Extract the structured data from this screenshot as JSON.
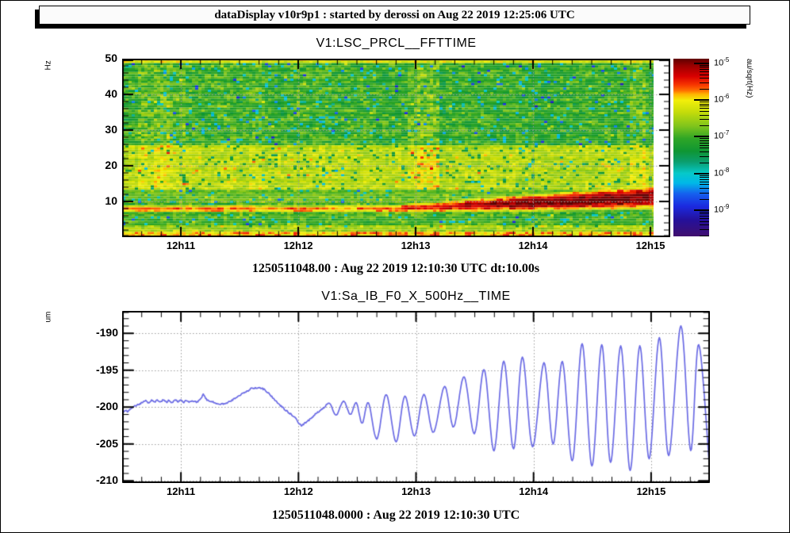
{
  "window": {
    "title_bar": "dataDisplay v10r9p1 : started by derossi on Aug 22 2019 12:25:06 UTC"
  },
  "colors": {
    "curve_line": "#6b6be4",
    "grid": "#9a9a9a",
    "frame": "#000000",
    "palette": [
      [
        0.0,
        "#5f0000"
      ],
      [
        0.04,
        "#9b0000"
      ],
      [
        0.1,
        "#d90000"
      ],
      [
        0.145,
        "#f63300"
      ],
      [
        0.18,
        "#ff7000"
      ],
      [
        0.2,
        "#ffb400"
      ],
      [
        0.235,
        "#f2ef0a"
      ],
      [
        0.3,
        "#c5dc0a"
      ],
      [
        0.38,
        "#7fc41c"
      ],
      [
        0.45,
        "#2ea626"
      ],
      [
        0.52,
        "#0f9633"
      ],
      [
        0.58,
        "#0b9e6e"
      ],
      [
        0.645,
        "#06c9c9"
      ],
      [
        0.7,
        "#00b8e8"
      ],
      [
        0.76,
        "#1560ee"
      ],
      [
        0.83,
        "#1b2ae0"
      ],
      [
        0.91,
        "#251099"
      ],
      [
        1.0,
        "#410f6e"
      ]
    ]
  },
  "time_axis": {
    "tick_labels": [
      "12h11",
      "12h12",
      "12h13",
      "12h14",
      "12h15"
    ],
    "tick_seconds": [
      30,
      90,
      150,
      210,
      270
    ],
    "minor_step_s": 10,
    "start_utc": "12:10:30",
    "duration_s": 300
  },
  "chart_data": [
    {
      "type": "heatmap",
      "title": "V1:LSC_PRCL__FFTTIME",
      "ylabel": "Hz",
      "zlabel": "au/sqrt(Hz)",
      "subtitle": "1250511048.00 : Aug 22 2019 12:10:30 UTC dt:10.00s",
      "ylim": [
        0,
        50
      ],
      "y_major_ticks": [
        10,
        20,
        30,
        40,
        50
      ],
      "y_minor_step": 2,
      "grid": true,
      "data_end_s": 271.5,
      "frame_end_s": 280,
      "colorbar": {
        "log10_top": -4.87,
        "log10_bottom": -9.72,
        "decade_exponents": [
          -5,
          -6,
          -7,
          -8,
          -9
        ]
      },
      "bands": [
        {
          "name": "top-edge-yellow-line",
          "f": [
            48.8,
            50
          ],
          "log10_level": -6.2,
          "noise": 0.4
        },
        {
          "name": "upper-green-background",
          "f": [
            26,
            48.8
          ],
          "log10_level": -7.05,
          "noise": 0.5
        },
        {
          "name": "yellow-mottled-band",
          "f": [
            13,
            26
          ],
          "log10_level": -6.4,
          "noise": 0.35
        },
        {
          "name": "mid-green",
          "f": [
            9.5,
            13
          ],
          "log10_level": -6.8,
          "noise": 0.3
        },
        {
          "name": "gap-green",
          "f": [
            3.2,
            6.5
          ],
          "log10_level": -6.95,
          "noise": 0.4
        },
        {
          "name": "low-yellow",
          "f": [
            1.6,
            3.2
          ],
          "log10_level": -6.5,
          "noise": 0.45
        },
        {
          "name": "bottom-orange-line",
          "f": [
            0.45,
            1.6
          ],
          "log10_level": -5.9,
          "noise": 0.5
        },
        {
          "name": "bottom-edge",
          "f": [
            0,
            0.45
          ],
          "log10_level": -6.9,
          "noise": 0.3
        }
      ],
      "red_band": {
        "f_center_start_hz": 7.9,
        "f_center_end_hz": 11.1,
        "rise_after_s": 140,
        "halfwidth_start_hz": 1.15,
        "halfwidth_end_hz": 3.1,
        "widen_after_s": 130,
        "log10_peak_start": -5.78,
        "log10_peak_end": -4.96,
        "intensify_between_s": [
          120,
          210
        ],
        "min_f_hz": 5.6
      },
      "vertical_streaks": {
        "region_f": [
          13,
          48
        ],
        "strength_before": 0.45,
        "strength_after": 0.85,
        "boundary_s": 150
      }
    },
    {
      "type": "line",
      "title": "V1:Sa_IB_F0_X_500Hz__TIME",
      "ylabel": "um",
      "footer": "1250511048.0000 : Aug 22 2019 12:10:30 UTC",
      "ylim": [
        -210.3,
        -186.95
      ],
      "y_major_ticks": [
        -190,
        -195,
        -200,
        -205,
        -210
      ],
      "y_minor_step": 1,
      "grid": true,
      "points": [
        [
          0,
          -200.9
        ],
        [
          1.5,
          -200.45
        ],
        [
          3,
          -200.6
        ],
        [
          4.5,
          -200.15
        ],
        [
          6,
          -199.95
        ],
        [
          7.5,
          -199.75
        ],
        [
          9,
          -199.55
        ],
        [
          10.5,
          -199.35
        ],
        [
          12,
          -199.1
        ],
        [
          13.5,
          -199.45
        ],
        [
          15,
          -199.05
        ],
        [
          16.5,
          -199.35
        ],
        [
          18,
          -199.1
        ],
        [
          19.5,
          -199.3
        ],
        [
          21,
          -199.0
        ],
        [
          22.5,
          -199.3
        ],
        [
          24,
          -199.1
        ],
        [
          25.5,
          -199.35
        ],
        [
          27,
          -199.05
        ],
        [
          28.5,
          -199.25
        ],
        [
          30,
          -199.1
        ],
        [
          31.5,
          -199.3
        ],
        [
          33,
          -199.1
        ],
        [
          34.5,
          -199.35
        ],
        [
          36,
          -199.15
        ],
        [
          37.5,
          -199.3
        ],
        [
          39,
          -199.2
        ],
        [
          40.2,
          -198.9
        ],
        [
          41.4,
          -198.3
        ],
        [
          42.6,
          -198.8
        ],
        [
          44,
          -199.15
        ],
        [
          46,
          -199.3
        ],
        [
          48,
          -199.45
        ],
        [
          50,
          -199.55
        ],
        [
          52,
          -199.5
        ],
        [
          54,
          -199.35
        ],
        [
          56,
          -199.1
        ],
        [
          58,
          -198.75
        ],
        [
          60,
          -198.4
        ],
        [
          62,
          -198.1
        ],
        [
          64,
          -197.8
        ],
        [
          66,
          -197.5
        ],
        [
          68,
          -197.35
        ],
        [
          70,
          -197.4
        ],
        [
          72,
          -197.55
        ],
        [
          74,
          -197.95
        ],
        [
          76,
          -198.45
        ],
        [
          78,
          -199.05
        ],
        [
          80,
          -199.6
        ],
        [
          82,
          -200.05
        ],
        [
          84,
          -200.55
        ],
        [
          86,
          -200.95
        ],
        [
          88,
          -201.4
        ],
        [
          90,
          -202.1
        ],
        [
          91.5,
          -202.5
        ],
        [
          93,
          -202.25
        ],
        [
          95,
          -201.85
        ],
        [
          97,
          -201.35
        ],
        [
          99,
          -200.85
        ],
        [
          101,
          -200.45
        ],
        [
          103,
          -200.05
        ],
        [
          106,
          -199.5
        ],
        [
          109.2,
          -201.1
        ],
        [
          113,
          -199.2
        ],
        [
          116.5,
          -201.0
        ],
        [
          119.5,
          -199.4
        ],
        [
          122.5,
          -202.2
        ],
        [
          125.7,
          -199.4
        ],
        [
          130,
          -204.3
        ],
        [
          134.8,
          -198.3
        ],
        [
          139.8,
          -204.7
        ],
        [
          144.3,
          -198.5
        ],
        [
          149.2,
          -203.9
        ],
        [
          154,
          -198.3
        ],
        [
          158.9,
          -203.4
        ],
        [
          164.6,
          -197.2
        ],
        [
          169.2,
          -202.7
        ],
        [
          174.5,
          -195.9
        ],
        [
          179.8,
          -203.6
        ],
        [
          184.8,
          -194.9
        ],
        [
          189.8,
          -205.9
        ],
        [
          194.8,
          -193.8
        ],
        [
          199.8,
          -205.7
        ],
        [
          204.3,
          -193.2
        ],
        [
          209.5,
          -205.4
        ],
        [
          215.3,
          -194.0
        ],
        [
          220,
          -205.0
        ],
        [
          224.7,
          -193.8
        ],
        [
          229.8,
          -207.3
        ],
        [
          234.8,
          -191.4
        ],
        [
          239.8,
          -208.0
        ],
        [
          244.8,
          -191.5
        ],
        [
          249.3,
          -207.5
        ],
        [
          254.5,
          -191.7
        ],
        [
          259.3,
          -208.6
        ],
        [
          264.2,
          -191.7
        ],
        [
          269,
          -207.0
        ],
        [
          274.2,
          -190.6
        ],
        [
          279,
          -206.6
        ],
        [
          285.2,
          -189.0
        ],
        [
          290.2,
          -205.9
        ],
        [
          294.3,
          -191.5
        ],
        [
          300,
          -208.9
        ]
      ]
    }
  ]
}
